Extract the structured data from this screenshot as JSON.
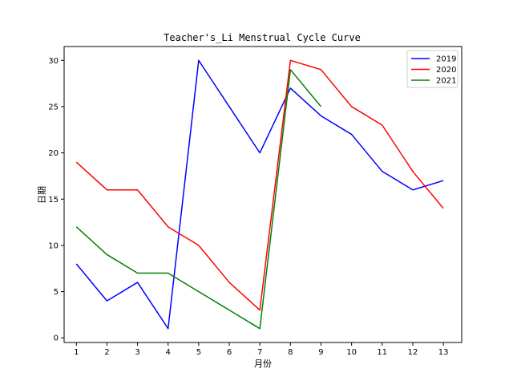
{
  "chart_data": {
    "type": "line",
    "title": "Teacher's_Li Menstrual Cycle Curve",
    "xlabel": "月份",
    "ylabel": "日期",
    "xlim": [
      0.6,
      13.6
    ],
    "ylim": [
      -0.5,
      31.5
    ],
    "x_ticks": [
      1,
      2,
      3,
      4,
      5,
      6,
      7,
      8,
      9,
      10,
      11,
      12,
      13
    ],
    "y_ticks": [
      0,
      5,
      10,
      15,
      20,
      25,
      30
    ],
    "grid": false,
    "legend_position": "top-right",
    "series": [
      {
        "name": "2019",
        "color": "#0000ff",
        "x": [
          1,
          2,
          3,
          4,
          5,
          6,
          7,
          8,
          9,
          10,
          11,
          12,
          13
        ],
        "values": [
          8,
          4,
          6,
          1,
          30,
          25,
          20,
          27,
          24,
          22,
          18,
          16,
          17
        ]
      },
      {
        "name": "2020",
        "color": "#ff0000",
        "x": [
          1,
          2,
          3,
          4,
          5,
          6,
          7,
          8,
          9,
          10,
          11,
          12,
          13
        ],
        "values": [
          19,
          16,
          16,
          12,
          10,
          6,
          3,
          30,
          29,
          25,
          23,
          18,
          14
        ]
      },
      {
        "name": "2021",
        "color": "#008000",
        "x": [
          1,
          2,
          3,
          4,
          5,
          6,
          7,
          8,
          9
        ],
        "values": [
          12,
          9,
          7,
          7,
          5,
          3,
          1,
          29,
          25
        ]
      }
    ]
  }
}
